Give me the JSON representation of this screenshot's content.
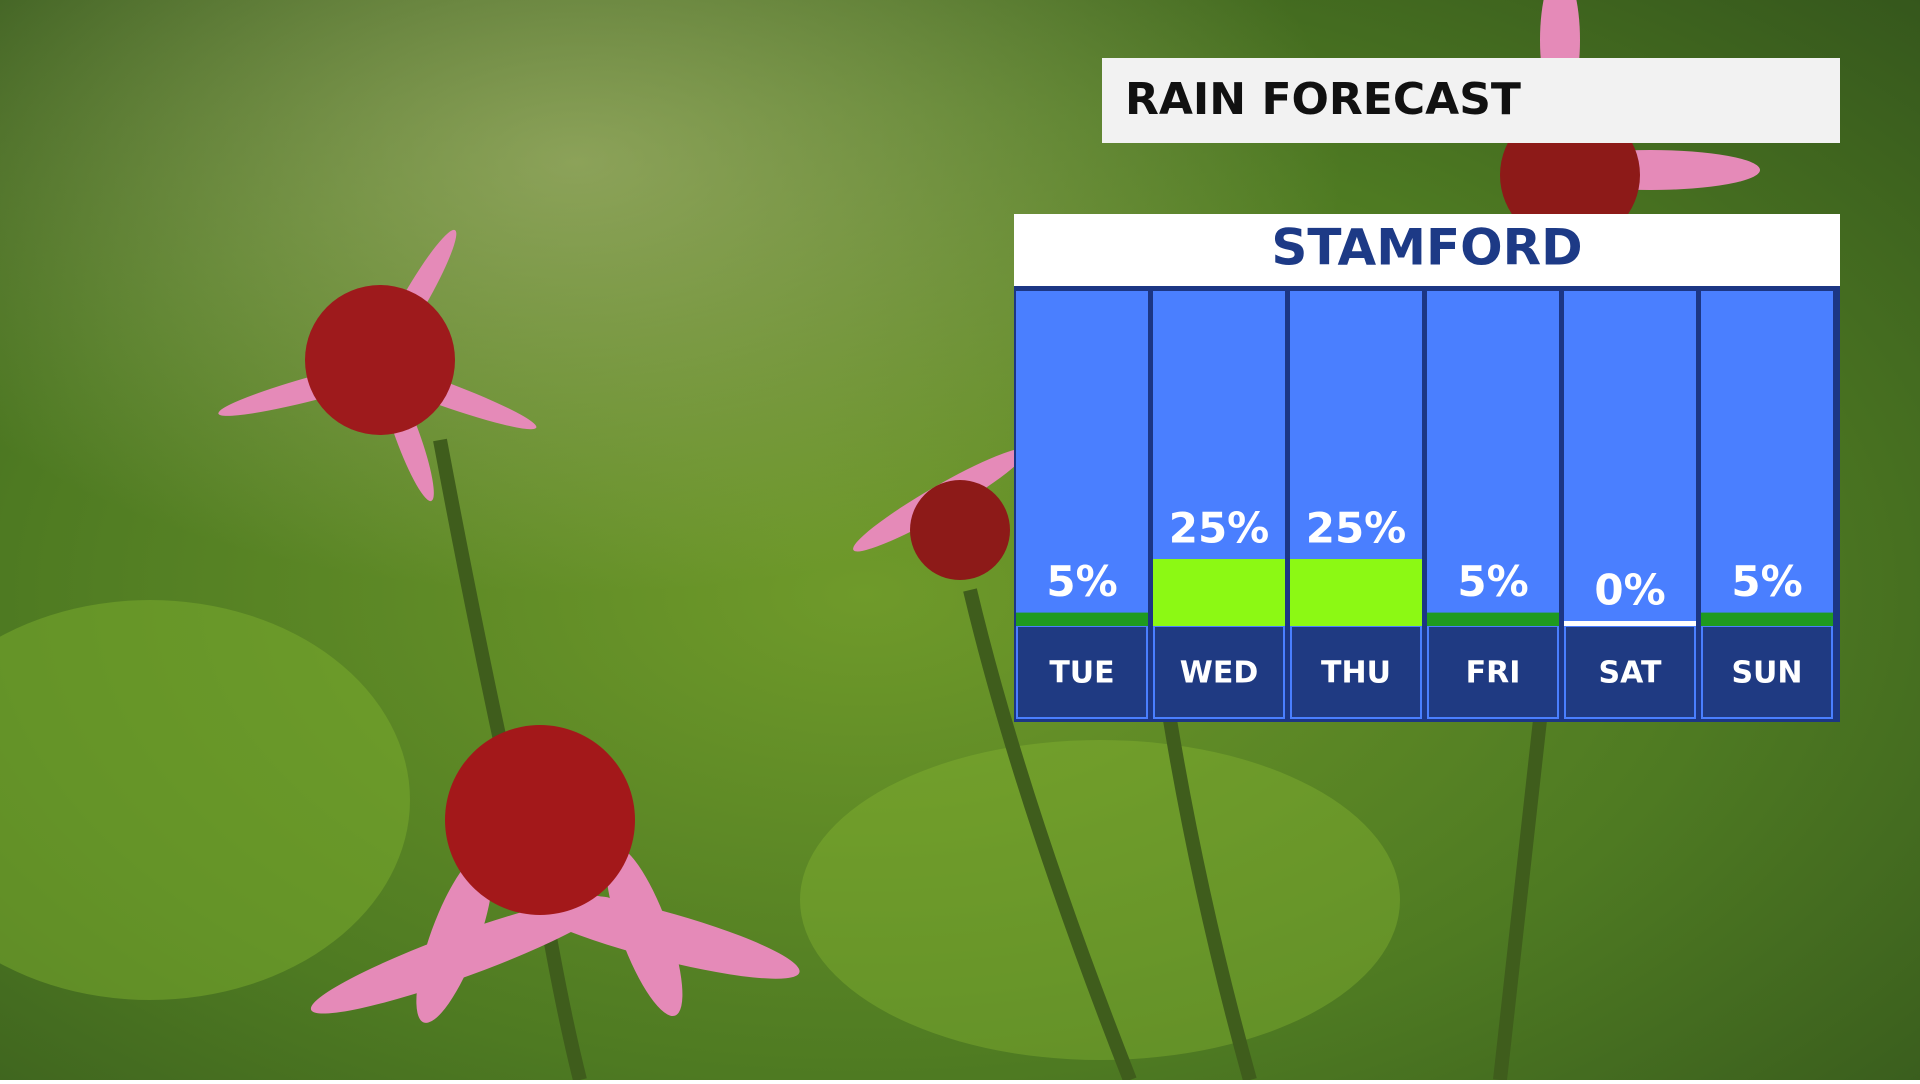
{
  "chart_data": {
    "type": "bar",
    "title": "RAIN FORECAST",
    "subtitle": "STAMFORD",
    "categories": [
      "TUE",
      "WED",
      "THU",
      "FRI",
      "SAT",
      "SUN"
    ],
    "values": [
      5,
      25,
      25,
      5,
      0,
      5
    ],
    "value_labels": [
      "5%",
      "25%",
      "25%",
      "5%",
      "0%",
      "5%"
    ],
    "colors": [
      "#1f9a1f",
      "#8cf914",
      "#8cf914",
      "#1f9a1f",
      "#ffffff",
      "#1f9a1f"
    ],
    "ylim": [
      0,
      125
    ]
  }
}
